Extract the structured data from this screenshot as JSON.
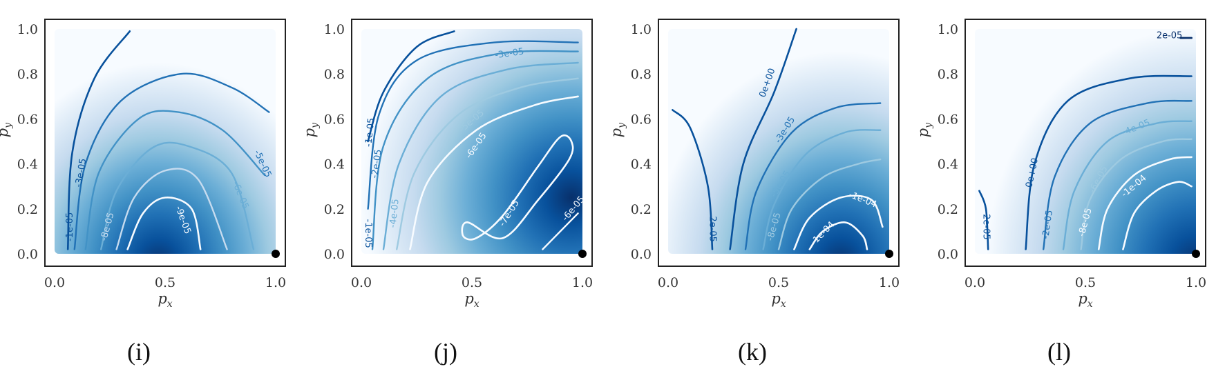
{
  "figure": {
    "panel_count": 4
  },
  "colors": {
    "colormap": [
      "#f7fbff",
      "#deebf7",
      "#c6dbef",
      "#9ecae1",
      "#6baed6",
      "#4292c6",
      "#2171b5",
      "#08519c",
      "#08306b"
    ],
    "marker": "#000000",
    "frame": "#222222"
  },
  "chart_data": [
    {
      "type": "heatmap",
      "caption": "(i)",
      "xlabel": "p",
      "xlabel_sub": "x",
      "ylabel": "p",
      "ylabel_sub": "y",
      "xlim": [
        0,
        1
      ],
      "ylim": [
        0,
        1
      ],
      "xticks": [
        "0.0",
        "0.5",
        "1.0"
      ],
      "yticks": [
        "0.0",
        "0.2",
        "0.4",
        "0.6",
        "0.8",
        "1.0"
      ],
      "marker": [
        1.0,
        0.0
      ],
      "contour_labels": [
        "-1e-05",
        "-3e-05",
        "-5e-05",
        "-6e-05",
        "-8e-05",
        "-9e-05"
      ]
    },
    {
      "type": "heatmap",
      "caption": "(j)",
      "xlabel": "p",
      "xlabel_sub": "x",
      "ylabel": "p",
      "ylabel_sub": "y",
      "xlim": [
        0,
        1
      ],
      "ylim": [
        0,
        1
      ],
      "xticks": [
        "0.0",
        "0.5",
        "1.0"
      ],
      "yticks": [
        "0.0",
        "0.2",
        "0.4",
        "0.6",
        "0.8",
        "1.0"
      ],
      "marker": [
        1.0,
        0.0
      ],
      "contour_labels": [
        "-1e-05",
        "-2e-05",
        "-3e-05",
        "-4e-05",
        "-5e-05",
        "-6e-05",
        "-7e-05",
        "-1e-05",
        "-6e-05"
      ]
    },
    {
      "type": "heatmap",
      "caption": "(k)",
      "xlabel": "p",
      "xlabel_sub": "x",
      "ylabel": "p",
      "ylabel_sub": "y",
      "xlim": [
        0,
        1
      ],
      "ylim": [
        0,
        1
      ],
      "xticks": [
        "0.0",
        "0.5",
        "1.0"
      ],
      "yticks": [
        "0.0",
        "0.2",
        "0.4",
        "0.6",
        "0.8",
        "1.0"
      ],
      "marker": [
        1.0,
        0.0
      ],
      "contour_labels": [
        "2e-05",
        "0e+00",
        "-3e-05",
        "-5e-05",
        "-8e-05",
        "-1e-04",
        "-1e-04"
      ]
    },
    {
      "type": "heatmap",
      "caption": "(l)",
      "xlabel": "p",
      "xlabel_sub": "x",
      "ylabel": "p",
      "ylabel_sub": "y",
      "xlim": [
        0,
        1
      ],
      "ylim": [
        0,
        1
      ],
      "xticks": [
        "0.0",
        "0.5",
        "1.0"
      ],
      "yticks": [
        "0.0",
        "0.2",
        "0.4",
        "0.6",
        "0.8",
        "1.0"
      ],
      "marker": [
        1.0,
        0.0
      ],
      "contour_labels": [
        "2e-05",
        "2e-05",
        "0e+00",
        "-2e-05",
        "-4e-05",
        "-6e-05",
        "-8e-05",
        "-1e-04"
      ]
    }
  ]
}
